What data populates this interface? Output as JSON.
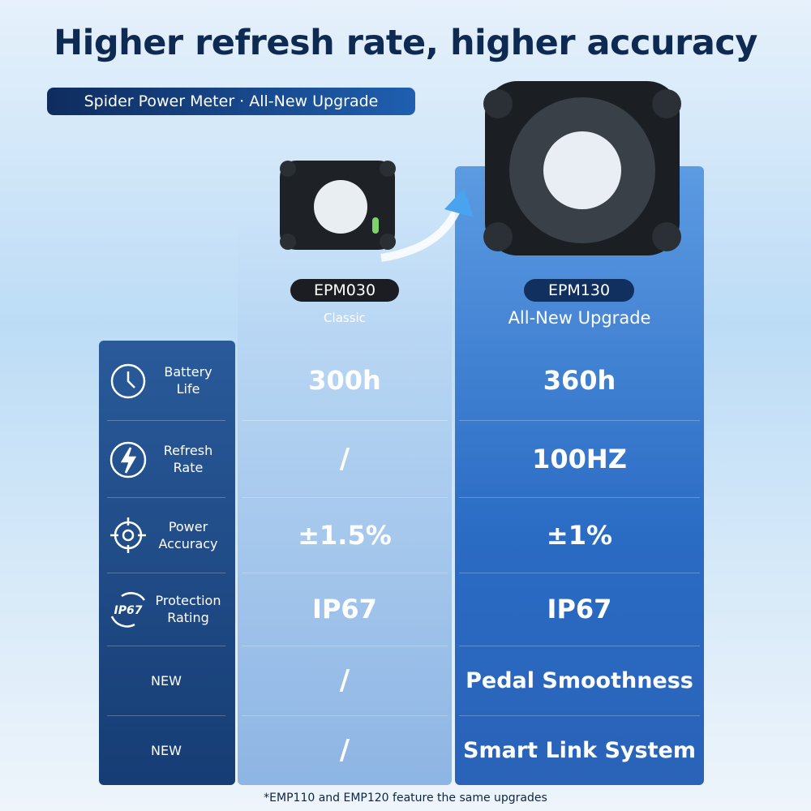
{
  "header": {
    "title": "Higher refresh rate, higher accuracy",
    "badge": "Spider Power Meter · All-New Upgrade"
  },
  "products": [
    {
      "name": "EPM030",
      "subtitle": "Classic"
    },
    {
      "name": "EPM130",
      "subtitle": "All-New Upgrade"
    }
  ],
  "table": {
    "rows": [
      {
        "label": "Battery Life",
        "values": [
          "300h",
          "360h"
        ]
      },
      {
        "label": "Refresh Rate",
        "values": [
          "/",
          "100HZ"
        ]
      },
      {
        "label": "Power Accuracy",
        "values": [
          "±1.5%",
          "±1%"
        ]
      },
      {
        "label": "Protection Rating",
        "values": [
          "IP67",
          "IP67"
        ]
      },
      {
        "label": "NEW",
        "values": [
          "/",
          "Pedal Smoothness"
        ]
      },
      {
        "label": "NEW",
        "values": [
          "/",
          "Smart Link System"
        ]
      }
    ]
  },
  "footnote": "*EMP110 and EMP120 feature the same upgrades"
}
